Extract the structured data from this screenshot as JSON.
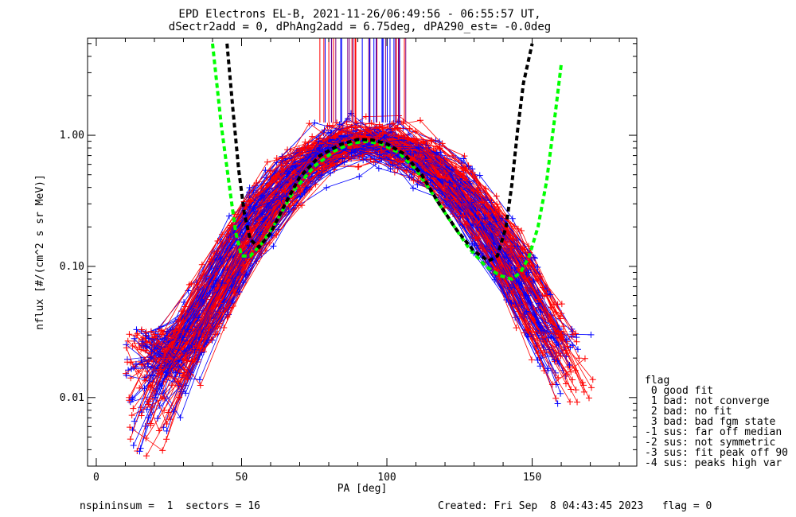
{
  "title_line1": "EPD Electrons EL-B, 2021-11-26/06:49:56 - 06:55:57 UT,",
  "title_line2": "dSectr2add = 0, dPhAng2add = 6.75deg, dPA290_est=  -0.0deg",
  "footer_left": "nspininsum =  1  sectors = 16",
  "footer_right": "Created: Fri Sep  8 04:43:45 2023   flag = 0",
  "legend": {
    "title": "flag",
    "items": [
      " 0 good fit",
      " 1 bad: not converge",
      " 2 bad: no fit",
      " 3 bad: bad fgm state",
      "-1 sus: far off median",
      "-2 sus: not symmetric",
      "-3 sus: fit peak off 90",
      "-4 sus: peaks high var"
    ]
  },
  "colors": {
    "red": "#ff0000",
    "blue": "#0000ff",
    "green": "#00ff00",
    "black": "#000000",
    "purple": "#800080"
  },
  "chart_data": {
    "type": "line",
    "title": "EPD Electrons EL-B, 2021-11-26/06:49:56 - 06:55:57 UT,",
    "xlabel": "PA [deg]",
    "ylabel": "nflux [#/(cm^2 s sr MeV)]",
    "xlim": [
      -3,
      186
    ],
    "ylim": [
      0.003,
      5.5
    ],
    "yscale": "log",
    "xticks": [
      0,
      50,
      100,
      150
    ],
    "xtick_labels": [
      "0",
      "50",
      "100",
      "150"
    ],
    "yticks": [
      0.01,
      0.1,
      1.0
    ],
    "ytick_labels": [
      "0.01",
      "0.10",
      "1.00"
    ],
    "series": [
      {
        "color": "green",
        "style": "dashed",
        "x": [
          40,
          43,
          46,
          48,
          50,
          53,
          57,
          62,
          68,
          75,
          82,
          88,
          93,
          98,
          104,
          110,
          116,
          122,
          128,
          134,
          139,
          143,
          146,
          149,
          152,
          155,
          158,
          160
        ],
        "y": [
          5.0,
          1.2,
          0.38,
          0.18,
          0.12,
          0.12,
          0.15,
          0.22,
          0.38,
          0.58,
          0.76,
          0.87,
          0.9,
          0.86,
          0.74,
          0.55,
          0.35,
          0.22,
          0.14,
          0.1,
          0.085,
          0.08,
          0.09,
          0.12,
          0.2,
          0.45,
          1.5,
          3.5
        ]
      },
      {
        "color": "black",
        "style": "dashed",
        "x": [
          45,
          47,
          49,
          51,
          53,
          56,
          60,
          65,
          70,
          77,
          84,
          90,
          95,
          100,
          106,
          112,
          118,
          124,
          130,
          135,
          138,
          141,
          143,
          145,
          147,
          150
        ],
        "y": [
          5.0,
          1.6,
          0.55,
          0.25,
          0.16,
          0.14,
          0.18,
          0.3,
          0.48,
          0.7,
          0.85,
          0.93,
          0.92,
          0.86,
          0.72,
          0.5,
          0.3,
          0.19,
          0.13,
          0.11,
          0.12,
          0.2,
          0.42,
          1.1,
          2.5,
          5.0
        ]
      }
    ]
  }
}
